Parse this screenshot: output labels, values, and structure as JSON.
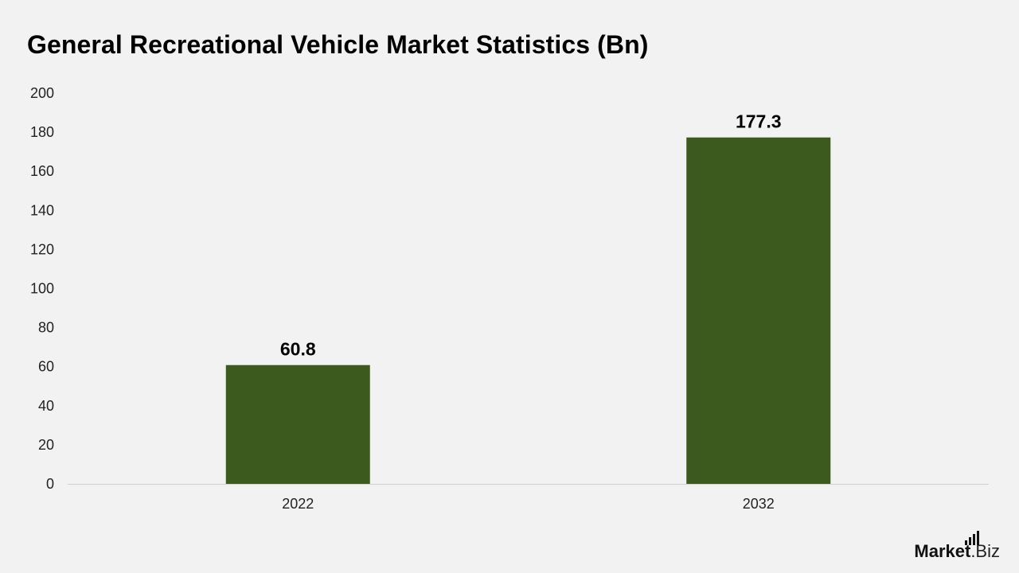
{
  "chart_data": {
    "type": "bar",
    "title": "General Recreational Vehicle Market Statistics (Bn)",
    "categories": [
      "2022",
      "2032"
    ],
    "values": [
      60.8,
      177.3
    ],
    "data_labels": [
      "60.8",
      "177.3"
    ],
    "ylim": [
      0,
      200
    ],
    "yticks": [
      0,
      20,
      40,
      60,
      80,
      100,
      120,
      140,
      160,
      180,
      200
    ],
    "bar_color": "#3d5a1e",
    "baseline_color": "#d0d0d0",
    "grid": false,
    "legend": "none"
  },
  "brand": {
    "name": "Market",
    "suffix": ".Biz"
  }
}
